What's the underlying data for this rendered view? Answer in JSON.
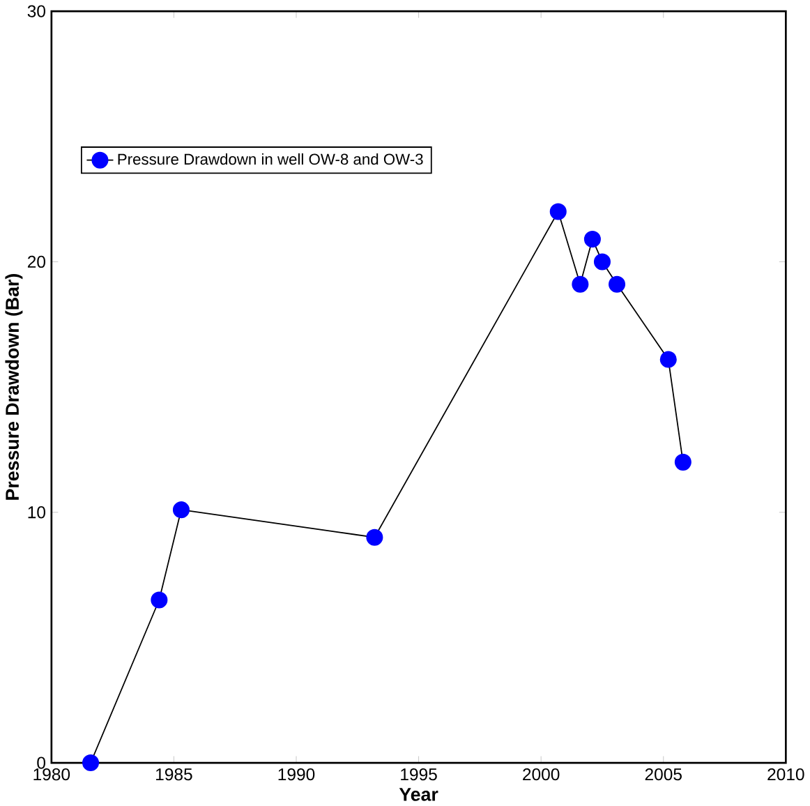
{
  "chart_data": {
    "type": "line",
    "xlabel": "Year",
    "ylabel": "Pressure Drawdown (Bar)",
    "marker": "circle",
    "legend": "top left",
    "grid": false,
    "xlim": [
      1980,
      2010
    ],
    "xticks": [
      1980,
      1985,
      1990,
      1995,
      2000,
      2005,
      2010
    ],
    "ylim": [
      0,
      30
    ],
    "yticks": [
      0,
      10,
      20,
      30
    ],
    "series": [
      {
        "name": "Pressure Drawdown in well OW-8 and OW-3",
        "color": "#0000ff",
        "x": [
          1981.6,
          1984.4,
          1985.3,
          1993.2,
          2000.7,
          2001.6,
          2002.1,
          2002.5,
          2003.1,
          2005.2,
          2005.8
        ],
        "values": [
          0,
          6.5,
          10.1,
          9.0,
          22.0,
          19.1,
          20.9,
          20.0,
          19.1,
          16.1,
          12.0
        ]
      }
    ]
  }
}
